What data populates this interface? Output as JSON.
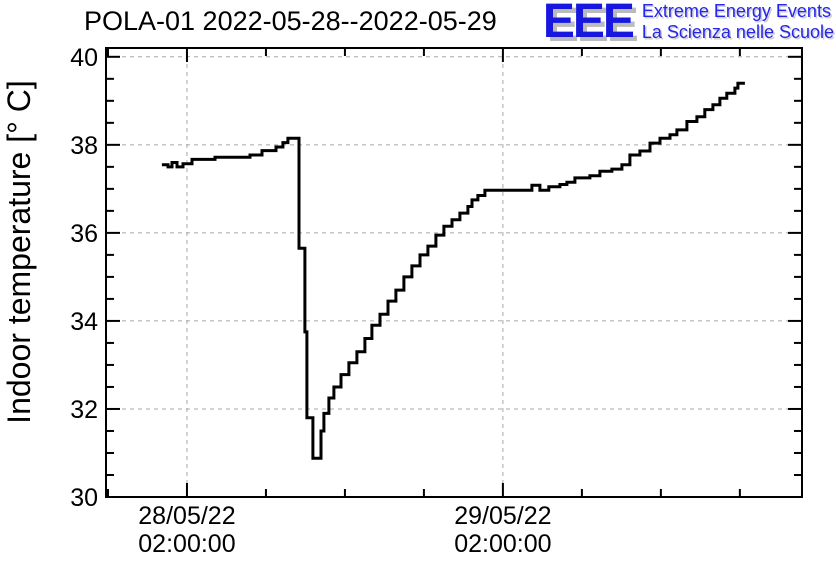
{
  "header": {
    "title": "POLA-01 2022-05-28--2022-05-29",
    "logo": {
      "acronym": "EEE",
      "line1": "Extreme Energy Events",
      "line2": "La Scienza nelle Scuole"
    }
  },
  "colors": {
    "logo_blue": "#1717e0",
    "logo_text_blue": "#2525ee",
    "curve": "#000000",
    "grid": "#a8a8a8",
    "frame": "#000000",
    "background": "#ffffff"
  },
  "chart_data": {
    "type": "line",
    "line_style": "step-after",
    "title": "POLA-01 2022-05-28--2022-05-29",
    "xlabel": "",
    "ylabel": "Indoor temperature [° C]",
    "x_unit": "hours since 2022-05-28 00:00:00",
    "xlim": [
      -4.15,
      48.72
    ],
    "ylim": [
      30,
      40.2
    ],
    "grid": "dashed lines at major ticks, mirrored ticks on all four frame sides",
    "legend": "none",
    "y_major_ticks": [
      30,
      32,
      34,
      36,
      38,
      40
    ],
    "y_minor_step": 0.5,
    "x_major_ticks": [
      {
        "t": 2,
        "label": [
          "28/05/22",
          "02:00:00"
        ]
      },
      {
        "t": 26,
        "label": [
          "29/05/22",
          "02:00:00"
        ]
      }
    ],
    "x_minor_ticks": [
      -4,
      8,
      14,
      20,
      32,
      38,
      44
    ],
    "series": [
      {
        "name": "indoor-temperature",
        "points": [
          [
            0.1,
            37.55
          ],
          [
            0.56,
            37.5
          ],
          [
            0.86,
            37.6
          ],
          [
            1.24,
            37.5
          ],
          [
            1.7,
            37.57
          ],
          [
            2.38,
            37.67
          ],
          [
            4.13,
            37.72
          ],
          [
            6.79,
            37.77
          ],
          [
            7.7,
            37.87
          ],
          [
            8.76,
            37.95
          ],
          [
            9.29,
            38.05
          ],
          [
            9.67,
            38.15
          ],
          [
            10.51,
            35.65
          ],
          [
            10.96,
            33.75
          ],
          [
            11.11,
            31.8
          ],
          [
            11.57,
            30.88
          ],
          [
            12.18,
            31.5
          ],
          [
            12.4,
            31.9
          ],
          [
            12.78,
            32.25
          ],
          [
            13.16,
            32.5
          ],
          [
            13.7,
            32.78
          ],
          [
            14.3,
            33.05
          ],
          [
            14.91,
            33.3
          ],
          [
            15.52,
            33.6
          ],
          [
            16.05,
            33.9
          ],
          [
            16.66,
            34.15
          ],
          [
            17.27,
            34.45
          ],
          [
            17.87,
            34.7
          ],
          [
            18.48,
            35.0
          ],
          [
            19.09,
            35.25
          ],
          [
            19.7,
            35.5
          ],
          [
            20.3,
            35.7
          ],
          [
            20.91,
            35.95
          ],
          [
            21.52,
            36.15
          ],
          [
            22.13,
            36.3
          ],
          [
            22.73,
            36.45
          ],
          [
            23.34,
            36.6
          ],
          [
            23.65,
            36.75
          ],
          [
            24.1,
            36.85
          ],
          [
            24.63,
            36.97
          ],
          [
            28.2,
            37.08
          ],
          [
            28.81,
            36.97
          ],
          [
            29.49,
            37.05
          ],
          [
            30.33,
            37.1
          ],
          [
            30.86,
            37.15
          ],
          [
            31.47,
            37.25
          ],
          [
            32.61,
            37.3
          ],
          [
            33.37,
            37.4
          ],
          [
            34.28,
            37.45
          ],
          [
            35.04,
            37.55
          ],
          [
            35.65,
            37.77
          ],
          [
            36.41,
            37.86
          ],
          [
            37.17,
            38.04
          ],
          [
            37.93,
            38.15
          ],
          [
            38.69,
            38.23
          ],
          [
            39.22,
            38.34
          ],
          [
            39.98,
            38.53
          ],
          [
            40.74,
            38.64
          ],
          [
            41.34,
            38.8
          ],
          [
            41.95,
            38.91
          ],
          [
            42.48,
            39.06
          ],
          [
            43.01,
            39.17
          ],
          [
            43.62,
            39.29
          ],
          [
            43.85,
            39.4
          ],
          [
            44.38,
            39.4
          ]
        ]
      }
    ]
  }
}
